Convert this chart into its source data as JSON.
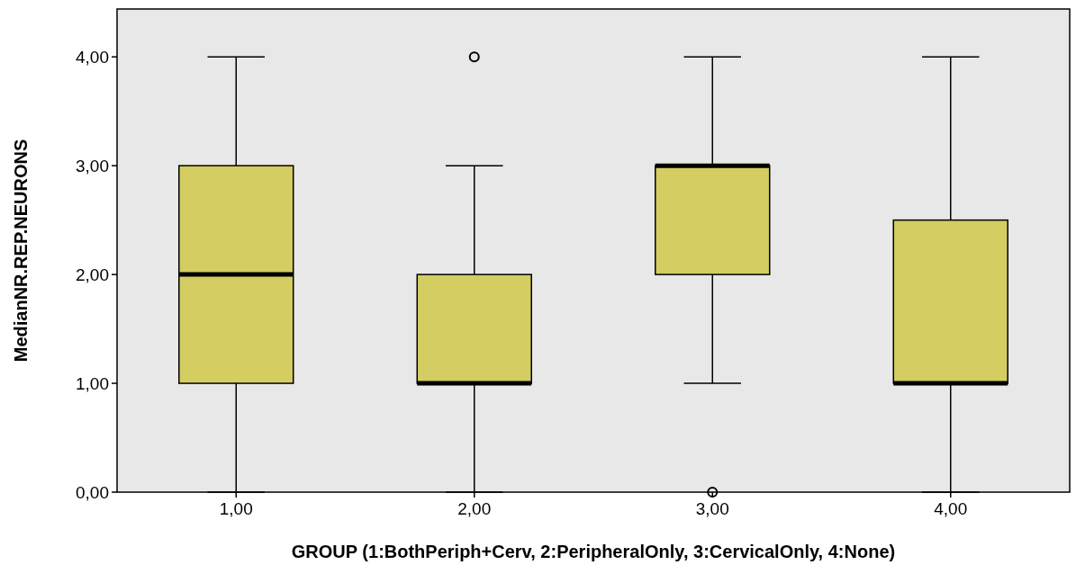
{
  "chart_data": {
    "type": "box",
    "xlabel": "GROUP (1:BothPeriph+Cerv, 2:PeripheralOnly, 3:CervicalOnly, 4:None)",
    "ylabel": "MedianNR.REP.NEURONS",
    "categories": [
      "1,00",
      "2,00",
      "3,00",
      "4,00"
    ],
    "series": [
      {
        "color": "#d3cd62",
        "boxes": [
          {
            "low": 0,
            "q1": 1,
            "median": 2,
            "q3": 3,
            "high": 4
          },
          {
            "low": 0,
            "q1": 1,
            "median": 1,
            "q3": 2,
            "high": 3,
            "outliers": [
              4
            ]
          },
          {
            "low": 1,
            "q1": 2,
            "median": 3,
            "q3": 3,
            "high": 4,
            "outliers": [
              0
            ]
          },
          {
            "low": 0,
            "q1": 1,
            "median": 1,
            "q3": 2.5,
            "high": 4
          }
        ]
      }
    ],
    "ylim": [
      0,
      4.44
    ],
    "yticks": [
      {
        "value": 0,
        "label": "0,00"
      },
      {
        "value": 1,
        "label": "1,00"
      },
      {
        "value": 2,
        "label": "2,00"
      },
      {
        "value": 3,
        "label": "3,00"
      },
      {
        "value": 4,
        "label": "4,00"
      }
    ],
    "grid": false
  }
}
